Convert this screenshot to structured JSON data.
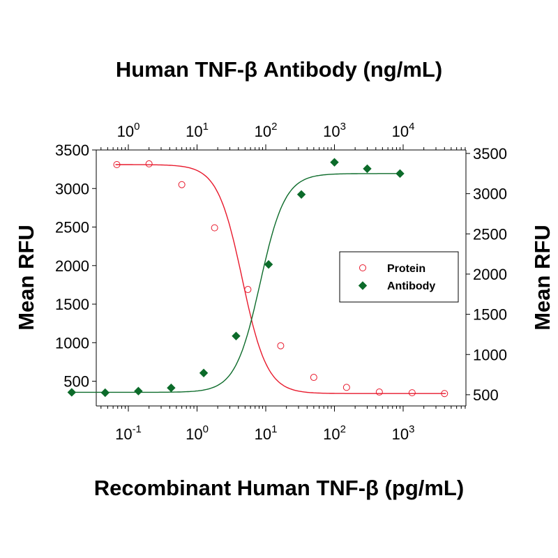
{
  "chart_data": {
    "type": "scatter",
    "title_top": "Human TNF-β Antibody (ng/mL)",
    "xlabel": "Recombinant Human TNF-β (pg/mL)",
    "ylabel_left": "Mean RFU",
    "ylabel_right": "Mean RFU",
    "x_bottom": {
      "scale": "log",
      "ticks": [
        {
          "value": 0.1,
          "base": "10",
          "exp": "-1"
        },
        {
          "value": 1,
          "base": "10",
          "exp": "0"
        },
        {
          "value": 10,
          "base": "10",
          "exp": "1"
        },
        {
          "value": 100,
          "base": "10",
          "exp": "2"
        },
        {
          "value": 1000,
          "base": "10",
          "exp": "3"
        }
      ]
    },
    "x_top": {
      "scale": "log",
      "ticks": [
        {
          "value": 1,
          "base": "10",
          "exp": "0"
        },
        {
          "value": 10,
          "base": "10",
          "exp": "1"
        },
        {
          "value": 100,
          "base": "10",
          "exp": "2"
        },
        {
          "value": 1000,
          "base": "10",
          "exp": "3"
        },
        {
          "value": 10000,
          "base": "10",
          "exp": "4"
        }
      ]
    },
    "y_left": {
      "ticks": [
        500,
        1000,
        1500,
        2000,
        2500,
        3000,
        3500
      ]
    },
    "y_right": {
      "ticks": [
        500,
        1000,
        1500,
        2000,
        2500,
        3000,
        3500
      ]
    },
    "legend_position": "center-right",
    "series": [
      {
        "name": "Protein",
        "marker": "open-circle",
        "color": "#e8192c",
        "x_axis": "bottom",
        "y_axis": "left",
        "points": [
          [
            0.068,
            3310
          ],
          [
            0.2,
            3320
          ],
          [
            0.6,
            3050
          ],
          [
            1.8,
            2490
          ],
          [
            5.5,
            1690
          ],
          [
            16.5,
            960
          ],
          [
            50,
            550
          ],
          [
            150,
            420
          ],
          [
            450,
            360
          ],
          [
            1350,
            350
          ],
          [
            4000,
            340
          ]
        ]
      },
      {
        "name": "Antibody",
        "marker": "filled-diamond",
        "color": "#0c6b2a",
        "x_axis": "top",
        "y_axis": "right",
        "points": [
          [
            0.15,
            530
          ],
          [
            0.46,
            525
          ],
          [
            1.4,
            545
          ],
          [
            4.2,
            585
          ],
          [
            12.5,
            770
          ],
          [
            37,
            1230
          ],
          [
            110,
            2120
          ],
          [
            330,
            2990
          ],
          [
            1000,
            3390
          ],
          [
            3000,
            3310
          ],
          [
            9000,
            3250
          ]
        ]
      }
    ]
  }
}
